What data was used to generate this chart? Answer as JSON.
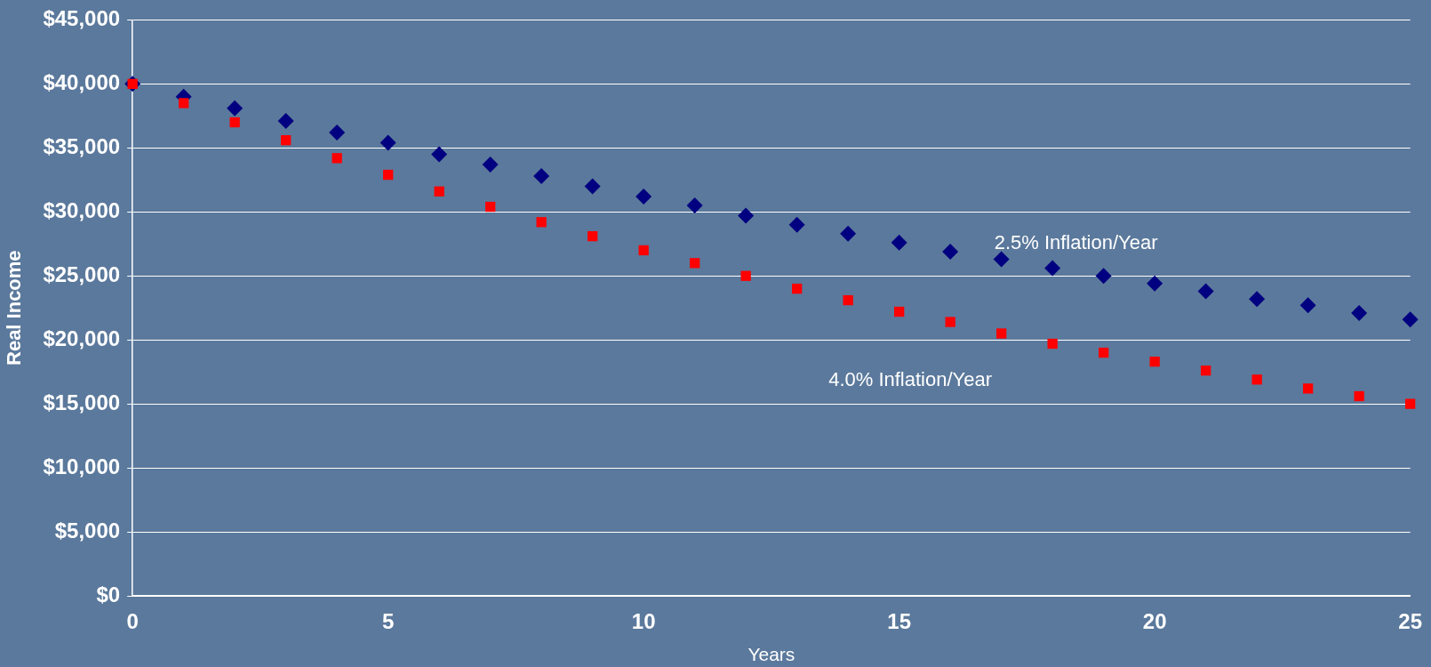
{
  "chart_data": {
    "type": "scatter",
    "xlabel": "Years",
    "ylabel": "Real Income",
    "x": [
      0,
      1,
      2,
      3,
      4,
      5,
      6,
      7,
      8,
      9,
      10,
      11,
      12,
      13,
      14,
      15,
      16,
      17,
      18,
      19,
      20,
      21,
      22,
      23,
      24,
      25
    ],
    "series": [
      {
        "name": "2.5% Inflation/Year",
        "color": "#000080",
        "marker": "diamond",
        "values": [
          40000,
          39000,
          38100,
          37100,
          36200,
          35400,
          34500,
          33700,
          32800,
          32000,
          31200,
          30500,
          29700,
          29000,
          28300,
          27600,
          26900,
          26300,
          25600,
          25000,
          24400,
          23800,
          23200,
          22700,
          22100,
          21600
        ]
      },
      {
        "name": "4.0% Inflation/Year",
        "color": "#ff0000",
        "marker": "square",
        "values": [
          40000,
          38500,
          37000,
          35600,
          34200,
          32900,
          31600,
          30400,
          29200,
          28100,
          27000,
          26000,
          25000,
          24000,
          23100,
          22200,
          21400,
          20500,
          19700,
          19000,
          18300,
          17600,
          16900,
          16200,
          15600,
          15000
        ]
      }
    ],
    "xlim": [
      0,
      25
    ],
    "xticks": [
      0,
      5,
      10,
      15,
      20,
      25
    ],
    "ylim": [
      0,
      45000
    ],
    "yticks": [
      {
        "value": 0,
        "label": "$0"
      },
      {
        "value": 5000,
        "label": "$5,000"
      },
      {
        "value": 10000,
        "label": "$10,000"
      },
      {
        "value": 15000,
        "label": "$15,000"
      },
      {
        "value": 20000,
        "label": "$20,000"
      },
      {
        "value": 25000,
        "label": "$25,000"
      },
      {
        "value": 30000,
        "label": "$30,000"
      },
      {
        "value": 35000,
        "label": "$35,000"
      },
      {
        "value": 40000,
        "label": "$40,000"
      },
      {
        "value": 45000,
        "label": "$45,000"
      }
    ],
    "grid": "y",
    "legend": false
  }
}
